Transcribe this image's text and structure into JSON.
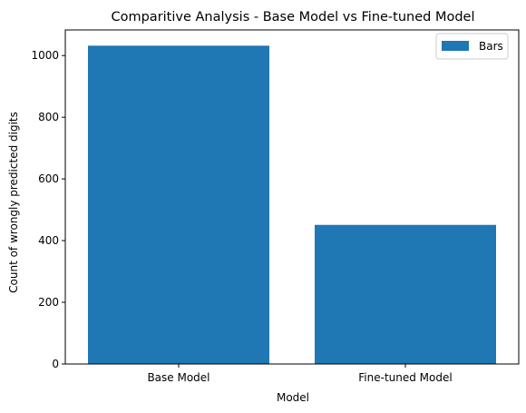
{
  "chart_data": {
    "type": "bar",
    "title": "Comparitive Analysis - Base Model vs Fine-tuned Model",
    "xlabel": "Model",
    "ylabel": "Count of wrongly predicted digits",
    "categories": [
      "Base Model",
      "Fine-tuned Model"
    ],
    "series": [
      {
        "name": "Bars",
        "values": [
          1032,
          451
        ]
      }
    ],
    "ylim": [
      0,
      1083
    ],
    "yticks": [
      0,
      200,
      400,
      600,
      800,
      1000
    ],
    "grid": false,
    "legend": "top-right",
    "colors": {
      "bar": "#1f77b4",
      "axis": "#000000",
      "background": "#ffffff"
    }
  }
}
